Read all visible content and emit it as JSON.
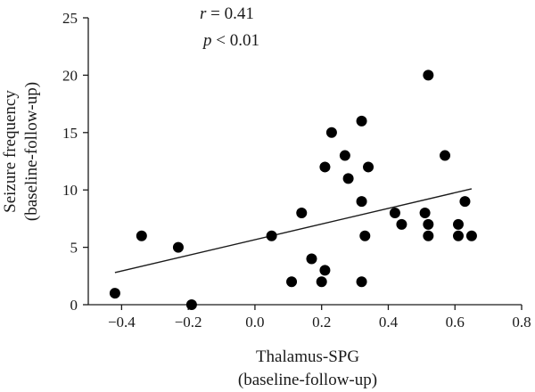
{
  "chart_data": {
    "type": "scatter",
    "xlabel": [
      "Thalamus-SPG",
      "(baseline-follow-up)"
    ],
    "ylabel": [
      "Seizure frequency",
      "(baseline-follow-up)"
    ],
    "xlim": [
      -0.5,
      0.8
    ],
    "ylim": [
      0,
      25
    ],
    "xticks": [
      -0.4,
      -0.2,
      0.0,
      0.2,
      0.4,
      0.6,
      0.8
    ],
    "xtick_labels": [
      "−0.4",
      "−0.2",
      "0.0",
      "0.2",
      "0.4",
      "0.6",
      "0.8"
    ],
    "yticks": [
      0,
      5,
      10,
      15,
      20,
      25
    ],
    "ytick_labels": [
      "0",
      "5",
      "10",
      "15",
      "20",
      "25"
    ],
    "annotations": {
      "r_symbol": "r",
      "r_text": " = 0.41",
      "p_symbol": "p",
      "p_text": " < 0.01"
    },
    "grid": false,
    "points": [
      {
        "x": -0.42,
        "y": 1
      },
      {
        "x": -0.34,
        "y": 6
      },
      {
        "x": -0.23,
        "y": 5
      },
      {
        "x": -0.19,
        "y": 0
      },
      {
        "x": 0.05,
        "y": 6
      },
      {
        "x": 0.11,
        "y": 2
      },
      {
        "x": 0.14,
        "y": 8
      },
      {
        "x": 0.17,
        "y": 4
      },
      {
        "x": 0.2,
        "y": 2
      },
      {
        "x": 0.21,
        "y": 12
      },
      {
        "x": 0.21,
        "y": 3
      },
      {
        "x": 0.23,
        "y": 15
      },
      {
        "x": 0.27,
        "y": 13
      },
      {
        "x": 0.28,
        "y": 11
      },
      {
        "x": 0.32,
        "y": 16
      },
      {
        "x": 0.32,
        "y": 9
      },
      {
        "x": 0.32,
        "y": 2
      },
      {
        "x": 0.33,
        "y": 6
      },
      {
        "x": 0.34,
        "y": 12
      },
      {
        "x": 0.42,
        "y": 8
      },
      {
        "x": 0.44,
        "y": 7
      },
      {
        "x": 0.51,
        "y": 8
      },
      {
        "x": 0.52,
        "y": 20
      },
      {
        "x": 0.52,
        "y": 7
      },
      {
        "x": 0.52,
        "y": 6
      },
      {
        "x": 0.57,
        "y": 13
      },
      {
        "x": 0.61,
        "y": 7
      },
      {
        "x": 0.61,
        "y": 6
      },
      {
        "x": 0.63,
        "y": 9
      },
      {
        "x": 0.65,
        "y": 6
      }
    ],
    "regression_line": {
      "x": [
        -0.42,
        0.65
      ],
      "y": [
        2.8,
        10.1
      ]
    }
  }
}
